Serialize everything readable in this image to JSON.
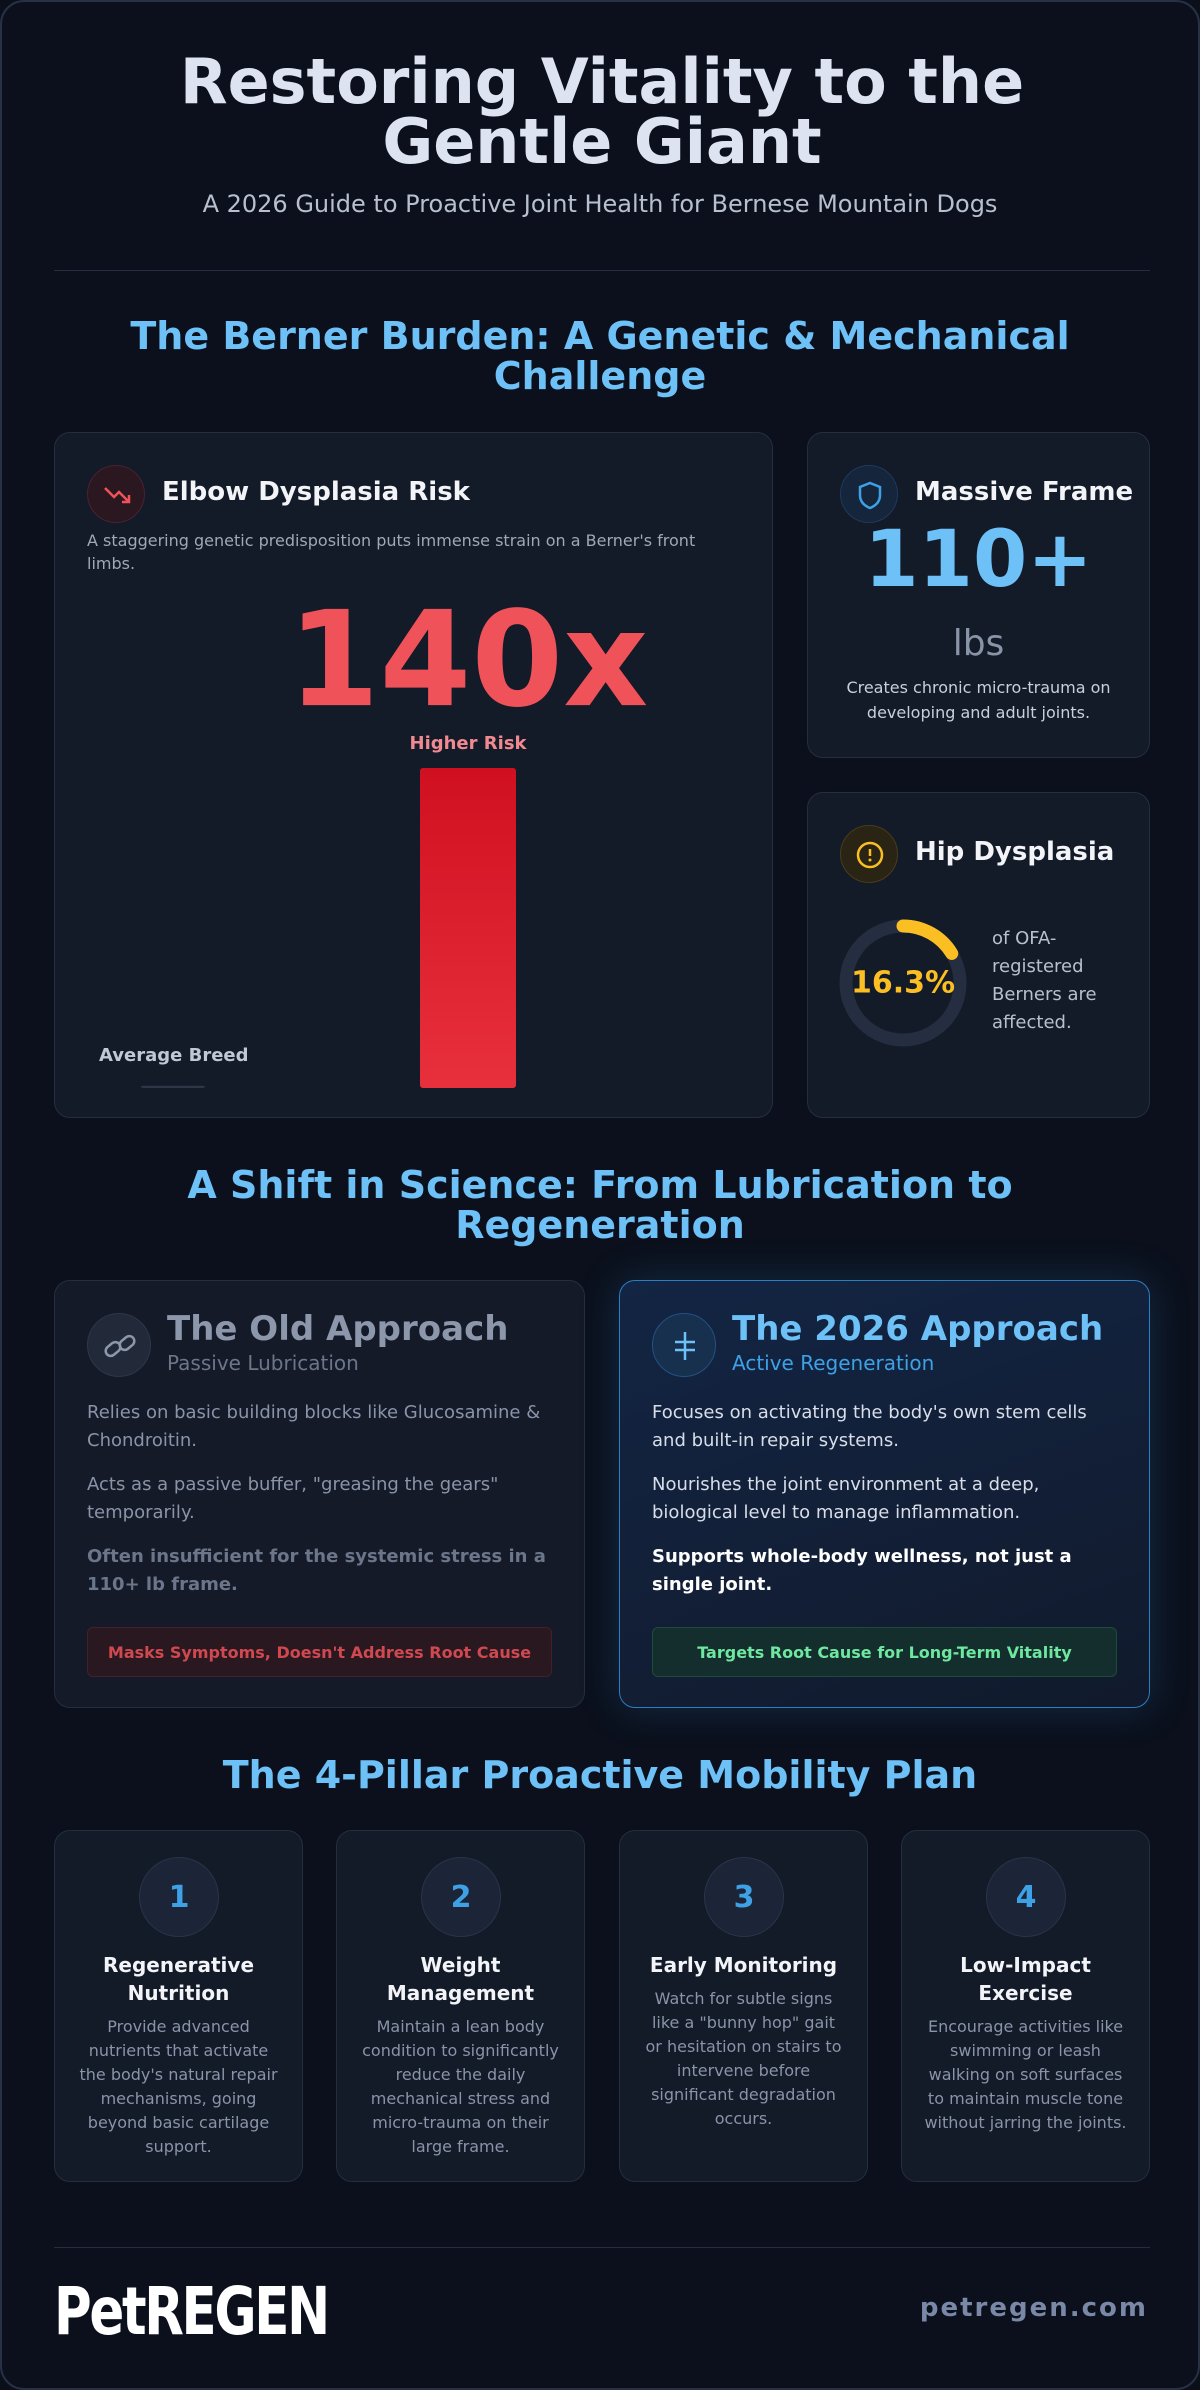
{
  "header": {
    "title": "Restoring Vitality to the Gentle Giant",
    "subtitle": "A 2026 Guide to Proactive Joint Health for Bernese Mountain Dogs"
  },
  "burden": {
    "heading": "The Berner Burden: A Genetic & Mechanical Challenge",
    "elbow": {
      "title": "Elbow Dysplasia Risk",
      "description": "A staggering genetic predisposition puts immense strain on a Berner's front limbs.",
      "stat": "140x",
      "chart": {
        "type": "bar",
        "categories": [
          "Average Breed",
          "Higher Risk"
        ],
        "values": [
          1,
          140
        ]
      }
    },
    "frame": {
      "title": "Massive Frame",
      "stat": "110+",
      "unit": "lbs",
      "description": "Creates chronic micro-trauma on developing and adult joints."
    },
    "hip": {
      "title": "Hip Dysplasia",
      "value": 16.3,
      "value_label": "16.3%",
      "description": "of OFA-registered Berners are affected."
    }
  },
  "science": {
    "heading": "A Shift in Science: From Lubrication to Regeneration",
    "old": {
      "title": "The Old Approach",
      "subtitle": "Passive Lubrication",
      "points": [
        "Relies on basic building blocks like Glucosamine & Chondroitin.",
        "Acts as a passive buffer, \"greasing the gears\" temporarily.",
        "Often insufficient for the systemic stress in a 110+ lb frame."
      ],
      "badge": "Masks Symptoms, Doesn't Address Root Cause"
    },
    "new": {
      "title": "The 2026 Approach",
      "subtitle": "Active Regeneration",
      "points": [
        "Focuses on activating the body's own stem cells and built-in repair systems.",
        "Nourishes the joint environment at a deep, biological level to manage inflammation.",
        "Supports whole-body wellness, not just a single joint."
      ],
      "badge": "Targets Root Cause for Long-Term Vitality"
    }
  },
  "plan": {
    "heading": "The 4-Pillar Proactive Mobility Plan",
    "pillars": [
      {
        "number": "1",
        "title": "Regenerative Nutrition",
        "text": "Provide advanced nutrients that activate the body's natural repair mechanisms, going beyond basic cartilage support."
      },
      {
        "number": "2",
        "title": "Weight Management",
        "text": "Maintain a lean body condition to significantly reduce the daily mechanical stress and micro-trauma on their large frame."
      },
      {
        "number": "3",
        "title": "Early Monitoring",
        "text": "Watch for subtle signs like a \"bunny hop\" gait or hesitation on stairs to intervene before significant degradation occurs."
      },
      {
        "number": "4",
        "title": "Low-Impact Exercise",
        "text": "Encourage activities like swimming or leash walking on soft surfaces to maintain muscle tone without jarring the joints."
      }
    ]
  },
  "footer": {
    "logo": "PetREGEN",
    "url": "petregen.com"
  }
}
